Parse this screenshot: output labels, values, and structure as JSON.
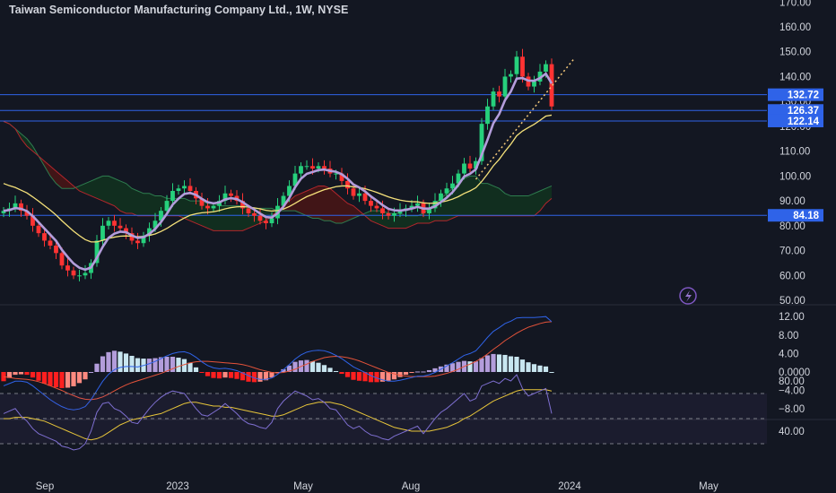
{
  "title": "Taiwan Semiconductor Manufacturing Company Ltd., 1W, NYSE",
  "colors": {
    "background": "#131722",
    "text": "#d1d4dc",
    "up": "#26d07c",
    "down": "#ff3333",
    "hline": "#2f63e8",
    "ema_fast": "#b39ddb",
    "ema_slow": "#f5e17a",
    "cloud_red": "#4a1515",
    "cloud_green": "#12331f",
    "macd": "#2f63e8",
    "signal": "#e5533a",
    "hist_pos_strong": "#b39ddb",
    "hist_pos_weak": "#c8e6f0",
    "hist_neg": "#ff1f1f",
    "rsi": "#7e6fd1",
    "rsi_ma": "#e7c53a"
  },
  "chart_data": [
    {
      "type": "candlestick",
      "name": "price",
      "y_ticks": [
        "50.00",
        "60.00",
        "70.00",
        "80.00",
        "90.00",
        "100.00",
        "110.00",
        "120.00",
        "130.00",
        "140.00",
        "150.00",
        "160.00",
        "170.00"
      ],
      "ylim": [
        48,
        170
      ],
      "x_labels": [
        "Sep",
        "2023",
        "May",
        "Aug",
        "2024",
        "May"
      ],
      "horizontal_levels": [
        {
          "value": 132.72,
          "label": "132.72"
        },
        {
          "value": 126.37,
          "label": "126.37"
        },
        {
          "value": 122.14,
          "label": "122.14"
        },
        {
          "value": 84.18,
          "label": "84.18"
        }
      ],
      "closes": [
        86,
        87,
        89,
        86,
        84,
        80,
        77,
        74,
        72,
        69,
        64,
        62,
        60,
        60,
        61,
        65,
        74,
        80,
        82,
        80,
        79,
        77,
        74,
        73,
        76,
        79,
        82,
        86,
        90,
        94,
        95,
        96,
        94,
        91,
        88,
        87,
        88,
        90,
        93,
        92,
        90,
        87,
        85,
        84,
        82,
        81,
        83,
        88,
        92,
        96,
        101,
        104,
        104,
        103,
        104,
        103,
        101,
        101,
        98,
        95,
        92,
        93,
        90,
        88,
        87,
        85,
        84,
        85,
        86,
        87,
        88,
        89,
        85,
        87,
        90,
        93,
        95,
        97,
        101,
        105,
        103,
        106,
        121,
        128,
        134,
        132,
        140,
        141,
        148,
        140,
        136,
        138,
        142,
        145,
        128
      ],
      "ema_fast": [
        86,
        86.3,
        87.1,
        86.8,
        85.9,
        83.9,
        81.4,
        78.9,
        76.4,
        73.9,
        70.3,
        67.4,
        64.8,
        63.1,
        62.3,
        63.2,
        67.1,
        71.5,
        75.1,
        76.8,
        77.6,
        77.4,
        76.1,
        75.1,
        75.4,
        76.7,
        78.7,
        81.5,
        84.8,
        88.5,
        90.9,
        92.8,
        93.2,
        92.4,
        90.8,
        89.5,
        89.0,
        89.4,
        90.6,
        91.1,
        90.7,
        89.5,
        87.9,
        86.5,
        84.9,
        83.5,
        83.3,
        85.0,
        87.7,
        91.2,
        95.5,
        98.9,
        100.9,
        101.6,
        102.4,
        102.6,
        102.1,
        101.7,
        100.7,
        98.9,
        96.6,
        95.4,
        93.8,
        91.8,
        90.1,
        88.3,
        86.8,
        86.2,
        86.1,
        86.4,
        86.9,
        87.6,
        86.9,
        86.9,
        87.8,
        89.5,
        91.3,
        93.5,
        96.4,
        99.8,
        100.9,
        102.7,
        108.5,
        114.6,
        121.2,
        124.9,
        130.5,
        134.0,
        139.2,
        139.4,
        138.4,
        138.3,
        139.4,
        141.2,
        137.2
      ],
      "ema_slow": [
        97,
        96.1,
        95.4,
        94.3,
        93.2,
        91.6,
        89.9,
        88.1,
        86.3,
        84.3,
        82.0,
        79.9,
        77.8,
        76.0,
        74.4,
        73.5,
        73.5,
        74.1,
        74.9,
        75.4,
        75.8,
        75.9,
        75.8,
        75.6,
        75.7,
        76.1,
        76.7,
        77.7,
        78.9,
        80.4,
        81.8,
        83.1,
        84.2,
        84.8,
        85.2,
        85.4,
        85.6,
        86.1,
        86.8,
        87.3,
        87.6,
        87.7,
        87.5,
        87.2,
        86.8,
        86.2,
        85.9,
        86.1,
        86.7,
        87.7,
        89.0,
        90.4,
        91.7,
        92.6,
        93.6,
        94.5,
        95.1,
        95.7,
        96.0,
        96.0,
        95.6,
        95.4,
        94.9,
        94.2,
        93.4,
        92.5,
        91.6,
        90.9,
        90.3,
        89.9,
        89.7,
        89.6,
        89.2,
        89.0,
        89.1,
        89.5,
        90.0,
        90.7,
        91.7,
        93.0,
        94.0,
        95.3,
        97.8,
        100.8,
        104.1,
        106.7,
        109.9,
        112.8,
        116.2,
        118.1,
        119.5,
        120.8,
        122.4,
        124.1,
        124.5
      ],
      "cloud_a": [
        122,
        121,
        119,
        117,
        115,
        112,
        108,
        104,
        100,
        97,
        95,
        95,
        95,
        96,
        97,
        98,
        99,
        100,
        100,
        99,
        98,
        97,
        95,
        94,
        93,
        93,
        92,
        92,
        91,
        91,
        91,
        91,
        90,
        90,
        90,
        89,
        89,
        88,
        88,
        88,
        88,
        88,
        88,
        87,
        87,
        87,
        87,
        86,
        86,
        86,
        86,
        85,
        84,
        83,
        83,
        82,
        82,
        81,
        81,
        82,
        83,
        84,
        85,
        86,
        86,
        86,
        85,
        85,
        85,
        84,
        84,
        84,
        85,
        87,
        89,
        91,
        93,
        95,
        97,
        99,
        100,
        100,
        97,
        97,
        96,
        95,
        93,
        92,
        92,
        92,
        92,
        93,
        94,
        95,
        96
      ],
      "cloud_b": [
        122,
        121,
        119,
        115,
        112,
        110,
        108,
        106,
        104,
        102,
        100,
        98,
        96,
        94,
        93,
        92,
        91,
        90,
        89,
        88,
        86,
        85,
        85,
        84,
        84,
        84,
        84,
        84,
        84,
        84,
        84,
        83,
        82,
        81,
        80,
        79,
        78,
        78,
        78,
        78,
        78,
        78,
        79,
        80,
        81,
        82,
        84,
        86,
        88,
        90,
        92,
        93,
        94,
        95,
        96,
        96,
        95,
        93,
        91,
        89,
        88,
        86,
        84,
        82,
        81,
        80,
        79,
        79,
        79,
        79,
        80,
        81,
        81,
        81,
        82,
        82,
        82,
        83,
        84,
        84,
        84,
        84,
        84,
        84,
        84,
        84,
        84,
        84,
        84,
        84,
        84,
        84,
        86,
        89,
        91
      ]
    },
    {
      "type": "macd",
      "name": "MACD",
      "y_ticks": [
        "12.00",
        "8.00",
        "4.00",
        "0.0000",
        "−4.00",
        "−8.00"
      ],
      "ylim": [
        -10.5,
        13.5
      ],
      "macd": [
        -3.0,
        -2.5,
        -2.0,
        -2.0,
        -2.2,
        -3.0,
        -4.0,
        -5.0,
        -6.0,
        -6.8,
        -7.5,
        -8.0,
        -8.2,
        -8.0,
        -7.5,
        -6.0,
        -4.0,
        -2.0,
        -0.5,
        0.5,
        1.0,
        1.2,
        1.2,
        1.1,
        1.4,
        1.8,
        2.3,
        2.9,
        3.5,
        4.0,
        4.3,
        4.4,
        4.0,
        3.2,
        2.2,
        1.4,
        0.9,
        0.7,
        0.8,
        0.6,
        0.3,
        -0.2,
        -0.8,
        -1.3,
        -1.6,
        -1.6,
        -1.3,
        -0.5,
        0.5,
        1.6,
        2.8,
        3.7,
        4.3,
        4.6,
        4.7,
        4.6,
        4.2,
        3.6,
        2.9,
        2.0,
        1.1,
        0.5,
        -0.1,
        -0.8,
        -1.3,
        -1.7,
        -2.0,
        -2.0,
        -1.8,
        -1.5,
        -1.2,
        -0.9,
        -0.9,
        -0.6,
        -0.1,
        0.6,
        1.3,
        2.0,
        2.8,
        3.6,
        4.0,
        4.6,
        6.0,
        7.5,
        8.8,
        9.6,
        10.5,
        11.0,
        11.7,
        11.8,
        11.8,
        11.8,
        11.9,
        12.0,
        10.9
      ],
      "signal": [
        -1.0,
        -1.2,
        -1.4,
        -1.5,
        -1.6,
        -1.8,
        -2.1,
        -2.5,
        -3.0,
        -3.5,
        -4.0,
        -4.6,
        -5.1,
        -5.6,
        -5.9,
        -6.0,
        -5.8,
        -5.4,
        -4.8,
        -4.1,
        -3.4,
        -2.8,
        -2.3,
        -1.9,
        -1.5,
        -1.1,
        -0.7,
        -0.3,
        0.2,
        0.7,
        1.2,
        1.6,
        2.0,
        2.2,
        2.3,
        2.3,
        2.2,
        2.1,
        2.0,
        1.9,
        1.8,
        1.6,
        1.3,
        0.9,
        0.5,
        0.2,
        -0.1,
        -0.2,
        -0.1,
        0.2,
        0.6,
        1.2,
        1.7,
        2.3,
        2.7,
        3.1,
        3.3,
        3.4,
        3.3,
        3.1,
        2.8,
        2.4,
        1.9,
        1.4,
        0.9,
        0.4,
        -0.1,
        -0.4,
        -0.7,
        -0.9,
        -1.0,
        -1.0,
        -1.0,
        -1.0,
        -0.9,
        -0.6,
        -0.3,
        0.1,
        0.6,
        1.2,
        1.7,
        2.3,
        3.0,
        3.9,
        4.9,
        5.8,
        6.8,
        7.6,
        8.4,
        9.1,
        9.7,
        10.1,
        10.5,
        10.8,
        10.9
      ]
    },
    {
      "type": "line",
      "name": "RSI",
      "y_ticks": [
        "80.00",
        "40.00"
      ],
      "ylim": [
        22,
        90
      ],
      "bands": [
        70,
        50,
        30
      ],
      "rsi": [
        54,
        56,
        58,
        52,
        48,
        42,
        38,
        36,
        34,
        32,
        28,
        27,
        25,
        26,
        30,
        40,
        55,
        62,
        63,
        58,
        56,
        52,
        47,
        46,
        52,
        58,
        63,
        67,
        70,
        72,
        71,
        70,
        64,
        58,
        53,
        52,
        55,
        58,
        62,
        58,
        54,
        49,
        46,
        45,
        43,
        42,
        47,
        58,
        64,
        68,
        72,
        70,
        68,
        65,
        66,
        63,
        58,
        57,
        51,
        45,
        42,
        44,
        40,
        37,
        36,
        34,
        33,
        36,
        38,
        40,
        42,
        44,
        38,
        44,
        50,
        55,
        58,
        62,
        66,
        70,
        64,
        66,
        76,
        78,
        80,
        78,
        82,
        80,
        85,
        74,
        68,
        70,
        72,
        74,
        54
      ],
      "rsi_ma": [
        50,
        50,
        51,
        51,
        51,
        50,
        49,
        48,
        46,
        44,
        42,
        40,
        38,
        36,
        34,
        33,
        34,
        36,
        39,
        42,
        45,
        47,
        49,
        50,
        51,
        52,
        53,
        54,
        56,
        58,
        60,
        62,
        63,
        63,
        62,
        61,
        60,
        60,
        59,
        59,
        58,
        57,
        56,
        55,
        54,
        53,
        52,
        52,
        53,
        55,
        57,
        59,
        61,
        62,
        63,
        63,
        63,
        62,
        61,
        59,
        57,
        55,
        53,
        51,
        49,
        47,
        45,
        43,
        42,
        41,
        40,
        40,
        40,
        40,
        41,
        42,
        43,
        45,
        47,
        50,
        52,
        55,
        58,
        61,
        64,
        66,
        68,
        70,
        72,
        73,
        73,
        73,
        73,
        73,
        72
      ]
    }
  ]
}
